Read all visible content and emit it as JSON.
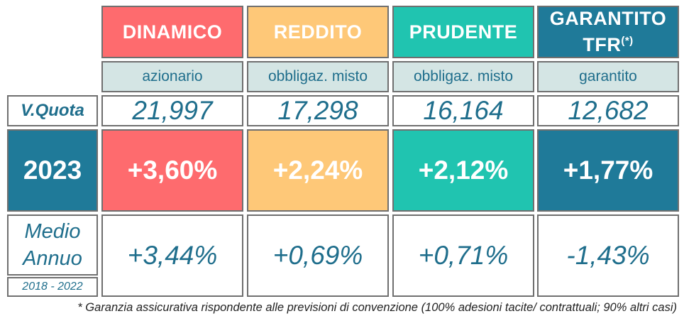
{
  "funds": [
    {
      "name": "DINAMICO",
      "type": "azionario",
      "quota": "21,997",
      "y2023": "+3,60%",
      "avg": "+3,44%",
      "color": "#fe6b6e"
    },
    {
      "name": "REDDITO",
      "type": "obbligaz. misto",
      "quota": "17,298",
      "y2023": "+2,24%",
      "avg": "+0,69%",
      "color": "#fec878"
    },
    {
      "name": "PRUDENTE",
      "type": "obbligaz. misto",
      "quota": "16,164",
      "y2023": "+2,12%",
      "avg": "+0,71%",
      "color": "#20c4b0"
    },
    {
      "name": "GARANTITO",
      "name_line2": "TFR",
      "name_mark": "(*)",
      "type": "garantito",
      "quota": "12,682",
      "y2023": "+1,77%",
      "avg": "-1,43%",
      "color": "#1f7a99"
    }
  ],
  "row_labels": {
    "quota": "V.Quota",
    "year": "2023",
    "avg_line1": "Medio",
    "avg_line2": "Annuo",
    "avg_period": "2018 - 2022"
  },
  "footnote": "* Garanzia assicurativa rispondente alle previsioni di convenzione (100% adesioni tacite/ contrattuali; 90% altri casi)"
}
